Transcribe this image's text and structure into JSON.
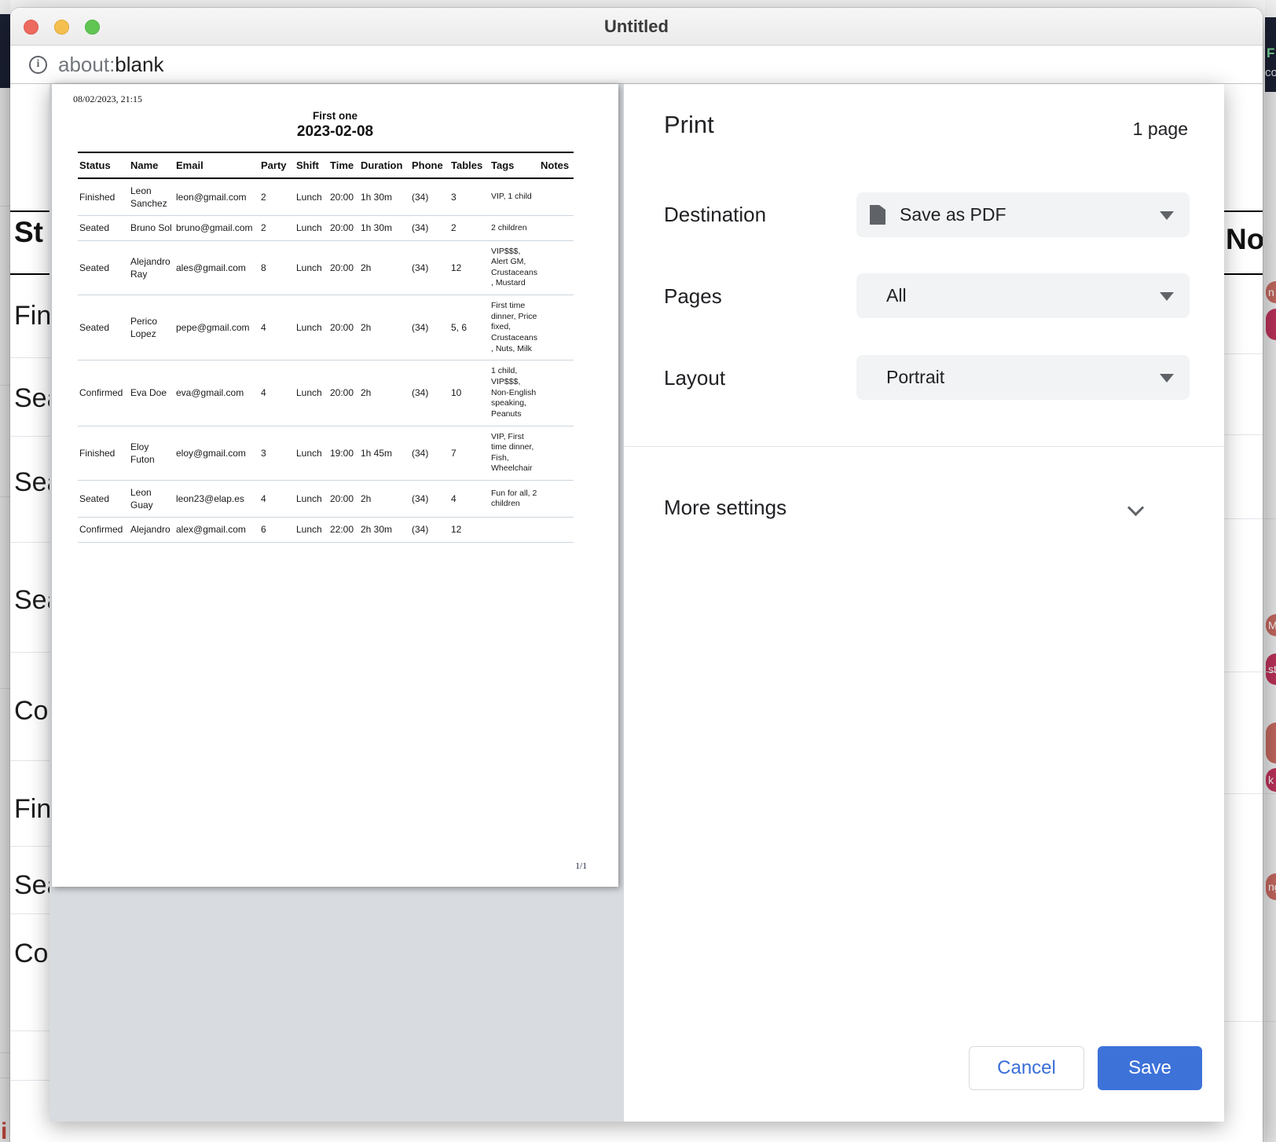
{
  "back_window": {
    "topbar_green_text": "F",
    "topbar_white_text": "co",
    "left_bottom_red_text": "i",
    "tag_chips": [
      {
        "label": "n",
        "color": "#c96b62"
      },
      {
        "label": "",
        "color": "#c2335c"
      },
      {
        "label": "M",
        "color": "#c96b62"
      },
      {
        "label": "st",
        "color": "#c2335c"
      },
      {
        "label": "",
        "color": "#c96b62"
      },
      {
        "label": "k",
        "color": "#c2335c"
      },
      {
        "label": "ng",
        "color": "#c96b62"
      }
    ]
  },
  "browser": {
    "window_title": "Untitled",
    "url_scheme": "about:",
    "url_rest": "blank"
  },
  "background_page": {
    "status_header_partial": "St",
    "notes_header_partial": "Note",
    "row_status_partials": [
      "Fin",
      "Sea",
      "Sea",
      "Sea",
      "Co",
      "Fin",
      "Sea",
      "Co"
    ]
  },
  "print_dialog": {
    "title": "Print",
    "page_count": "1 page",
    "destination_label": "Destination",
    "destination_value": "Save as PDF",
    "pages_label": "Pages",
    "pages_value": "All",
    "layout_label": "Layout",
    "layout_value": "Portrait",
    "more_settings_label": "More settings",
    "cancel_label": "Cancel",
    "save_label": "Save",
    "accent_color": "#3d72d9"
  },
  "preview_document": {
    "printed_timestamp": "08/02/2023, 21:15",
    "title": "First one",
    "date": "2023-02-08",
    "page_indicator": "1/1",
    "table": {
      "headers": [
        "Status",
        "Name",
        "Email",
        "Party",
        "Shift",
        "Time",
        "Duration",
        "Phone",
        "Tables",
        "Tags",
        "Notes"
      ],
      "rows": [
        [
          "Finished",
          "Leon Sanchez",
          "leon@gmail.com",
          "2",
          "Lunch",
          "20:00",
          "1h 30m",
          "(34)",
          "3",
          "VIP, 1 child",
          ""
        ],
        [
          "Seated",
          "Bruno Sol",
          "bruno@gmail.com",
          "2",
          "Lunch",
          "20:00",
          "1h 30m",
          "(34)",
          "2",
          "2 children",
          ""
        ],
        [
          "Seated",
          "Alejandro Ray",
          "ales@gmail.com",
          "8",
          "Lunch",
          "20:00",
          "2h",
          "(34)",
          "12",
          "VIP$$$, Alert GM, Crustaceans, Mustard",
          ""
        ],
        [
          "Seated",
          "Perico Lopez",
          "pepe@gmail.com",
          "4",
          "Lunch",
          "20:00",
          "2h",
          "(34)",
          "5, 6",
          "First time dinner, Price fixed, Crustaceans, Nuts, Milk",
          ""
        ],
        [
          "Confirmed",
          "Eva Doe",
          "eva@gmail.com",
          "4",
          "Lunch",
          "20:00",
          "2h",
          "(34)",
          "10",
          "1 child, VIP$$$, Non-English speaking, Peanuts",
          ""
        ],
        [
          "Finished",
          "Eloy Futon",
          "eloy@gmail.com",
          "3",
          "Lunch",
          "19:00",
          "1h 45m",
          "(34)",
          "7",
          "VIP, First time dinner, Fish, Wheelchair",
          ""
        ],
        [
          "Seated",
          "Leon Guay",
          "leon23@elap.es",
          "4",
          "Lunch",
          "20:00",
          "2h",
          "(34)",
          "4",
          "Fun for all, 2 children",
          ""
        ],
        [
          "Confirmed",
          "Alejandro",
          "alex@gmail.com",
          "6",
          "Lunch",
          "22:00",
          "2h 30m",
          "(34)",
          "12",
          "",
          ""
        ]
      ]
    }
  }
}
